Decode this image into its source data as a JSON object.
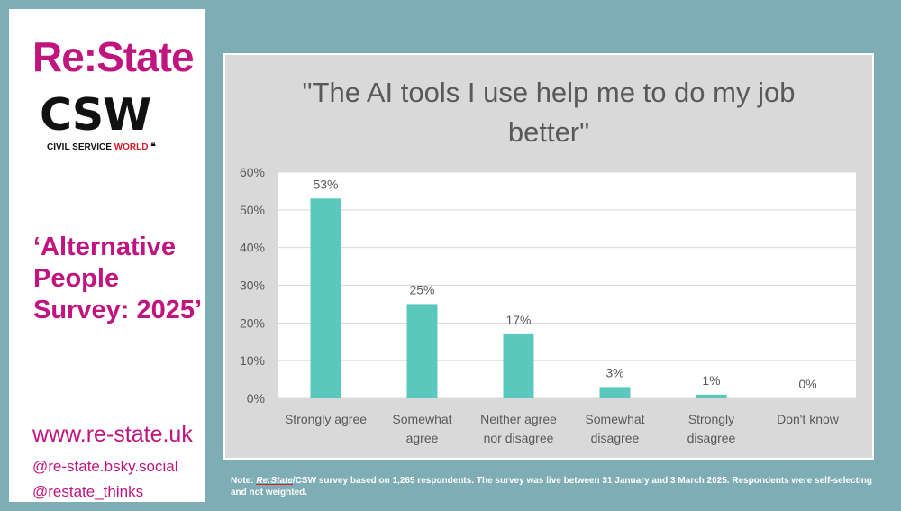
{
  "sidebar": {
    "brand": "Re:State",
    "csw_logo": "CSW",
    "csw_sub_prefix": "CIVIL SERVICE ",
    "csw_sub_highlight": "WORLD",
    "survey_title_lines": [
      "‘Alternative",
      "People",
      "Survey: 2025’"
    ],
    "website": "www.re-state.uk",
    "handle_bluesky": "@re-state.bsky.social",
    "handle_x": "@restate_thinks"
  },
  "note": {
    "prefix": "Note: ",
    "brand": "Re:State",
    "text": "/CSW survey based on 1,265 respondents. The survey was live between 31 January and 3 March 2025. Respondents were self-selecting and not weighted."
  },
  "chart_data": {
    "type": "bar",
    "title": "\"The AI tools I use help me to do my job better\"",
    "title_lines": [
      "\"The AI tools I use help me to do my job",
      "better\""
    ],
    "categories": [
      "Strongly agree",
      "Somewhat agree",
      "Neither agree nor disagree",
      "Somewhat disagree",
      "Strongly disagree",
      "Don't know"
    ],
    "category_lines": [
      [
        "Strongly agree"
      ],
      [
        "Somewhat",
        "agree"
      ],
      [
        "Neither agree",
        "nor disagree"
      ],
      [
        "Somewhat",
        "disagree"
      ],
      [
        "Strongly",
        "disagree"
      ],
      [
        "Don't know"
      ]
    ],
    "values": [
      53,
      25,
      17,
      3,
      1,
      0
    ],
    "data_labels": [
      "53%",
      "25%",
      "17%",
      "3%",
      "1%",
      "0%"
    ],
    "ylim": [
      0,
      60
    ],
    "yticks": [
      0,
      10,
      20,
      30,
      40,
      50,
      60
    ],
    "ytick_labels": [
      "0%",
      "10%",
      "20%",
      "30%",
      "40%",
      "50%",
      "60%"
    ],
    "grid": true,
    "colors": {
      "bar": "#5bc8be",
      "plot_bg": "#ffffff",
      "panel_bg": "#d9d9d9"
    }
  },
  "colors": {
    "accent": "#c0157f",
    "background": "#7fadb6"
  }
}
